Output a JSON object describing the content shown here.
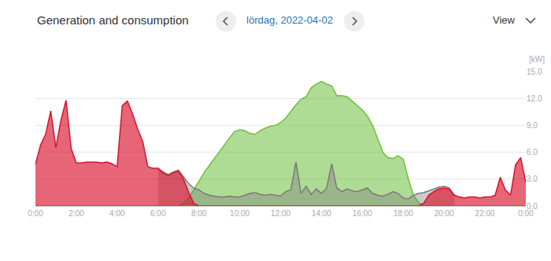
{
  "header": {
    "title": "Generation and consumption",
    "date": "lördag, 2022-04-02",
    "view": "View"
  },
  "chart_data": {
    "type": "area",
    "ylabel": "[kW]",
    "x": [
      0,
      0.25,
      0.5,
      0.75,
      1,
      1.25,
      1.5,
      1.75,
      2,
      2.25,
      2.5,
      2.75,
      3,
      3.25,
      3.5,
      3.75,
      4,
      4.25,
      4.5,
      4.75,
      5,
      5.25,
      5.5,
      5.75,
      6,
      6.25,
      6.5,
      6.75,
      7,
      7.25,
      7.5,
      7.75,
      8,
      8.25,
      8.5,
      8.75,
      9,
      9.25,
      9.5,
      9.75,
      10,
      10.25,
      10.5,
      10.75,
      11,
      11.25,
      11.5,
      11.75,
      12,
      12.25,
      12.5,
      12.75,
      13,
      13.25,
      13.5,
      13.75,
      14,
      14.25,
      14.5,
      14.75,
      15,
      15.25,
      15.5,
      15.75,
      16,
      16.25,
      16.5,
      16.75,
      17,
      17.25,
      17.5,
      17.75,
      18,
      18.25,
      18.5,
      18.75,
      19,
      19.25,
      19.5,
      19.75,
      20,
      20.25,
      20.5,
      20.75,
      21,
      21.25,
      21.5,
      21.75,
      22,
      22.25,
      22.5,
      22.75,
      23,
      23.25,
      23.5,
      23.75,
      24
    ],
    "series": [
      {
        "color": "#6dbf3c",
        "values": [
          0,
          0,
          0,
          0,
          0,
          0,
          0,
          0,
          0,
          0,
          0,
          0,
          0,
          0,
          0,
          0,
          0,
          0,
          0,
          0,
          0,
          0,
          0,
          0,
          0,
          0,
          0,
          0,
          0,
          0.3,
          0.9,
          1.8,
          2.8,
          3.7,
          4.5,
          5.3,
          6.0,
          6.8,
          7.6,
          8.3,
          8.5,
          8.4,
          8.1,
          8.0,
          8.4,
          8.7,
          8.9,
          9.0,
          9.3,
          9.8,
          10.6,
          11.3,
          11.9,
          12.2,
          13.2,
          13.6,
          13.9,
          13.6,
          13.4,
          12.3,
          12.3,
          12.2,
          11.7,
          11.2,
          10.7,
          10.0,
          9.0,
          7.5,
          6.0,
          5.4,
          5.3,
          5.6,
          5.2,
          3.0,
          1.2,
          0.4,
          0,
          0,
          0,
          0,
          0,
          0,
          0,
          0,
          0,
          0,
          0,
          0,
          0,
          0,
          0,
          0,
          0,
          0,
          0,
          0,
          0
        ]
      },
      {
        "color": "#7a7a7a",
        "values": [
          null,
          null,
          null,
          null,
          null,
          null,
          null,
          null,
          null,
          null,
          null,
          null,
          null,
          null,
          null,
          null,
          null,
          null,
          null,
          null,
          null,
          null,
          null,
          null,
          4.2,
          3.8,
          3.5,
          3.8,
          4.0,
          3.2,
          2.5,
          2.0,
          1.8,
          1.4,
          1.2,
          1.1,
          1.0,
          1.0,
          1.1,
          1.0,
          1.0,
          1.2,
          1.4,
          1.5,
          1.3,
          1.2,
          1.3,
          1.2,
          1.1,
          1.6,
          1.8,
          4.9,
          1.4,
          2.2,
          1.3,
          1.9,
          1.4,
          2.0,
          4.7,
          2.0,
          1.6,
          1.9,
          1.7,
          1.6,
          1.8,
          2.0,
          1.4,
          1.2,
          1.1,
          1.3,
          1.6,
          1.4,
          0.9,
          0.8,
          1.2,
          1.4,
          1.5,
          1.7,
          1.9,
          2.1,
          2.2,
          2.0,
          1.2,
          null,
          null,
          null,
          null,
          null,
          null,
          null,
          null,
          null,
          null,
          null,
          null,
          null,
          null
        ]
      },
      {
        "color": "#d8132c",
        "values": [
          4.6,
          6.8,
          8.0,
          10.6,
          6.5,
          9.6,
          11.8,
          6.4,
          4.8,
          4.8,
          4.9,
          4.9,
          4.9,
          4.8,
          4.9,
          4.7,
          4.4,
          11.2,
          11.7,
          10.3,
          8.6,
          7.2,
          4.4,
          4.2,
          4.2,
          3.7,
          3.4,
          3.7,
          3.9,
          3.0,
          1.5,
          0.3,
          0,
          0,
          0,
          0,
          0,
          0,
          0,
          0,
          0,
          0,
          0,
          0,
          0,
          0,
          0,
          0,
          0,
          0,
          0,
          0,
          0,
          0,
          0,
          0,
          0,
          0,
          0,
          0,
          0,
          0,
          0,
          0,
          0,
          0,
          0,
          0,
          0,
          0,
          0,
          0,
          0,
          0,
          0,
          0,
          0.3,
          1.2,
          1.6,
          1.9,
          2.0,
          1.9,
          1.2,
          1.0,
          0.9,
          1.0,
          1.0,
          0.9,
          1.0,
          1.0,
          1.2,
          3.2,
          1.8,
          1.2,
          4.6,
          5.4,
          2.6
        ]
      }
    ],
    "xlim": [
      0,
      24
    ],
    "xticks": [
      {
        "value": 0,
        "label": "0:00"
      },
      {
        "value": 2,
        "label": "2:00"
      },
      {
        "value": 4,
        "label": "4:00"
      },
      {
        "value": 6,
        "label": "6:00"
      },
      {
        "value": 8,
        "label": "8:00"
      },
      {
        "value": 10,
        "label": "10:00"
      },
      {
        "value": 12,
        "label": "12:00"
      },
      {
        "value": 14,
        "label": "14:00"
      },
      {
        "value": 16,
        "label": "16:00"
      },
      {
        "value": 18,
        "label": "18:00"
      },
      {
        "value": 20,
        "label": "20:00"
      },
      {
        "value": 22,
        "label": "22:00"
      },
      {
        "value": 24,
        "label": "0:00"
      }
    ],
    "ylim": [
      0,
      15
    ],
    "yticks": [
      {
        "value": 0,
        "label": "0.0"
      },
      {
        "value": 3,
        "label": "3.0"
      },
      {
        "value": 6,
        "label": "6.0"
      },
      {
        "value": 9,
        "label": "9.0"
      },
      {
        "value": 12,
        "label": "12.0"
      },
      {
        "value": 15,
        "label": "15.0"
      }
    ],
    "grid": true
  }
}
